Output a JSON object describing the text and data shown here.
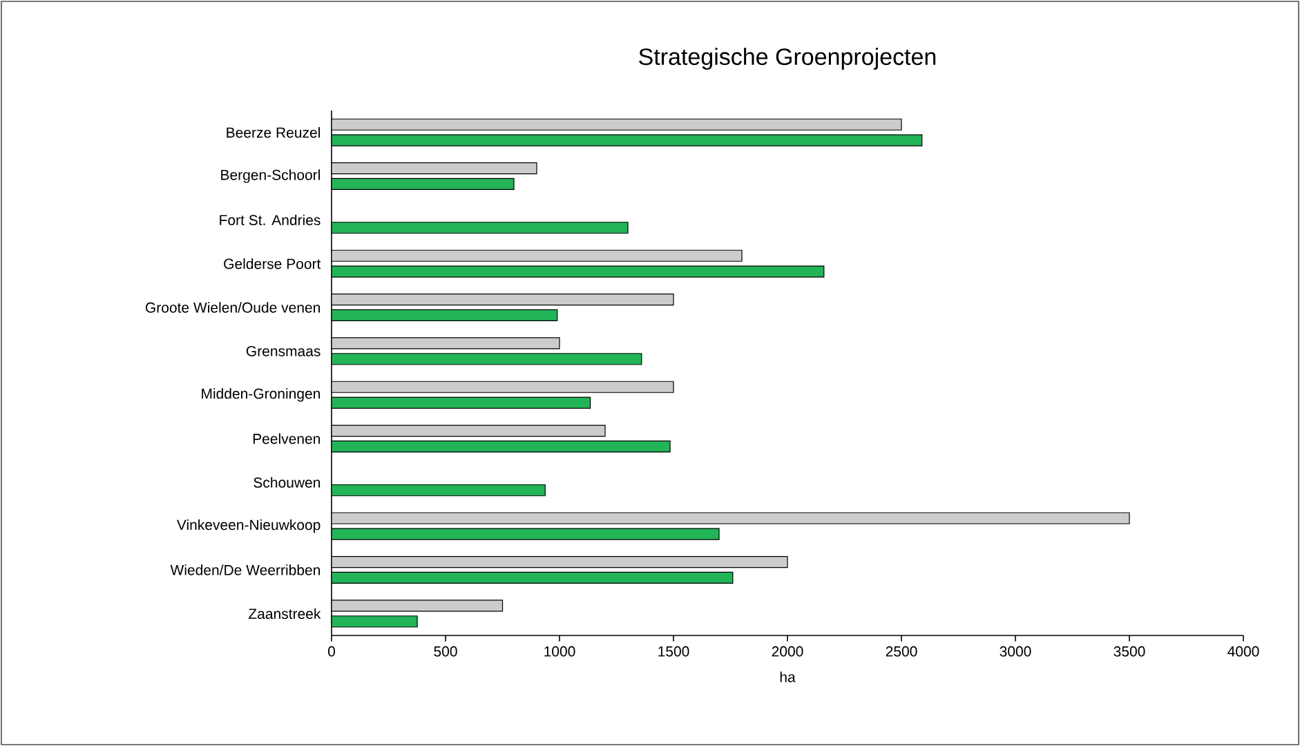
{
  "chart_data": {
    "type": "bar",
    "orientation": "horizontal",
    "title": "Strategische Groenprojecten",
    "xlabel": "ha",
    "categories": [
      "Beerze Reuzel",
      "Bergen-Schoorl",
      "Fort St. Andries",
      "Gelderse Poort",
      "Groote Wielen/Oude venen",
      "Grensmaas",
      "Midden-Groningen",
      "Peelvenen",
      "Schouwen",
      "Vinkeveen-Nieuwkoop",
      "Wieden/De Weerribben",
      "Zaanstreek"
    ],
    "series": [
      {
        "color": "#cccccc",
        "values": [
          2500,
          900,
          null,
          1800,
          1500,
          1000,
          1500,
          1200,
          null,
          3500,
          2000,
          750
        ]
      },
      {
        "color": "#22b457",
        "values": [
          2590,
          800,
          1300,
          2160,
          990,
          1360,
          1135,
          1485,
          937,
          1700,
          1760,
          376
        ]
      }
    ],
    "xlim": [
      0,
      4000
    ],
    "xticks": [
      0,
      500,
      1000,
      1500,
      2000,
      2500,
      3000,
      3500,
      4000
    ],
    "grid": false
  }
}
